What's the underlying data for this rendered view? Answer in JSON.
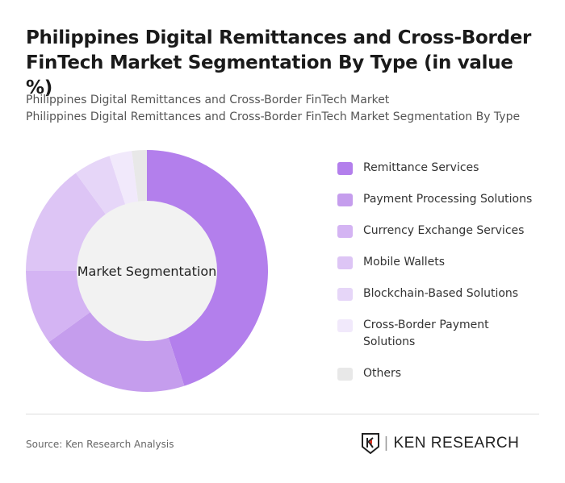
{
  "title": "Philippines Digital Remittances and Cross-Border FinTech Market Segmentation By Type (in value %)",
  "subtitle_lines": [
    "Philippines Digital Remittances and Cross-Border FinTech Market",
    "Philippines Digital Remittances and Cross-Border FinTech Market Segmentation By Type"
  ],
  "source": "Source: Ken Research Analysis",
  "logo_text": "KEN RESEARCH",
  "chart_data": {
    "type": "pie",
    "variant": "donut",
    "center_label": "Market Segmentation",
    "legend_position": "right",
    "categories": [
      "Remittance Services",
      "Payment Processing Solutions",
      "Currency Exchange Services",
      "Mobile Wallets",
      "Blockchain-Based Solutions",
      "Cross-Border Payment Solutions",
      "Others"
    ],
    "values": [
      45,
      20,
      10,
      15,
      5,
      3,
      2
    ],
    "colors": [
      "#b37fec",
      "#c59ded",
      "#d4b4f3",
      "#ddc5f5",
      "#e6d6f8",
      "#f1e9fb",
      "#e8e8e8"
    ]
  }
}
